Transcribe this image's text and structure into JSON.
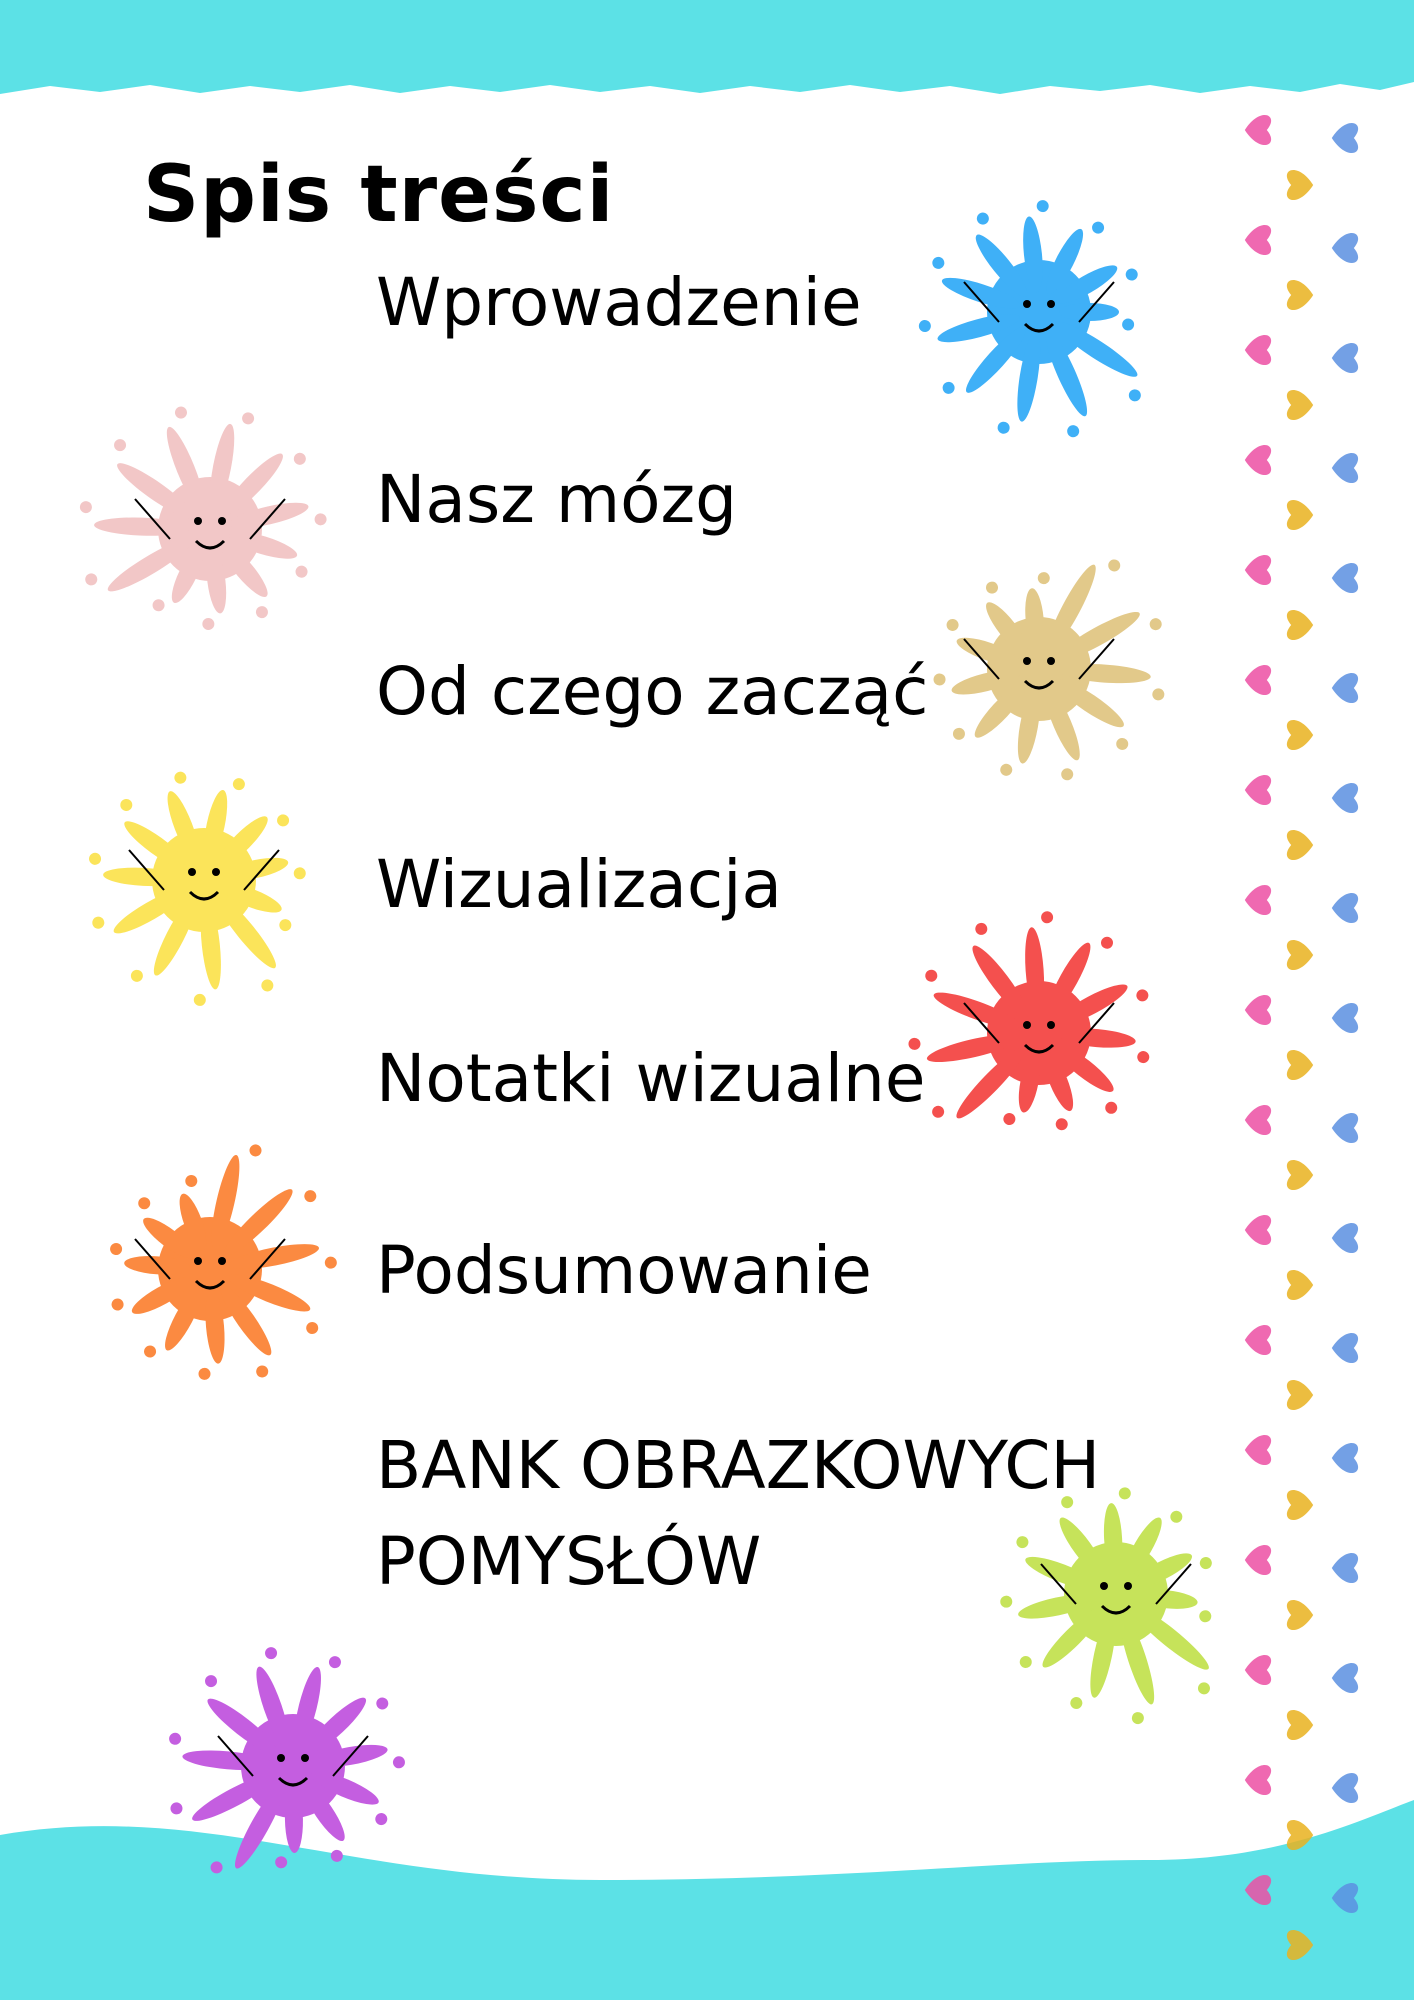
{
  "title": "Spis treści",
  "items": [
    "Wprowadzenie",
    "Nasz mózg",
    "Od czego zacząć",
    "Wizualizacja",
    "Notatki wizualne",
    "Podsumowanie",
    "BANK OBRAZKOWYCH POMYSŁÓW"
  ],
  "bank_lines": [
    "BANK OBRAZKOWYCH",
    "POMYSŁÓW"
  ],
  "colors": {
    "band": "#5ce1e6",
    "splashes": [
      "#3fb0f7",
      "#f2c7c7",
      "#e2c98a",
      "#fbe45a",
      "#f4504e",
      "#fb8a41",
      "#c6e35a",
      "#c45ee0"
    ],
    "hearts": [
      "#ec4fa3",
      "#e9b21f",
      "#5b8fe0"
    ]
  }
}
